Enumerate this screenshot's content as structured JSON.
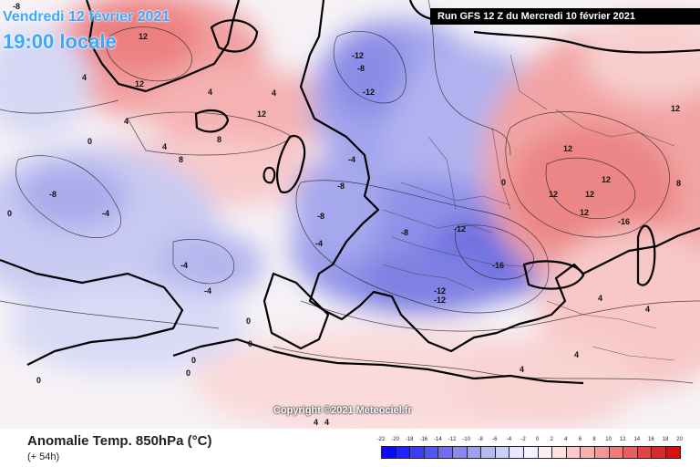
{
  "header": {
    "date": "Vendredi 12 février 2021",
    "time": "19:00 locale",
    "run": "Run GFS 12 Z du Mercredi 10 février 2021"
  },
  "footer": {
    "title": "Anomalie Temp. 850hPa (°C)",
    "subtitle": "(+ 54h)",
    "copyright": "Copyright ©2021 Meteociel.fr"
  },
  "scale": {
    "labels": [
      "-22",
      "-20",
      "-18",
      "-16",
      "-14",
      "-12",
      "-10",
      "-8",
      "-6",
      "-4",
      "-2",
      "0",
      "2",
      "4",
      "6",
      "8",
      "10",
      "12",
      "14",
      "16",
      "18",
      "20"
    ],
    "colors": [
      "#0a0aff",
      "#2222ff",
      "#3d3df2",
      "#5656ee",
      "#6f6fee",
      "#8888f0",
      "#a0a0f3",
      "#b8b8f7",
      "#cfcffb",
      "#e6e6ff",
      "#f4f4ff",
      "#fff0f0",
      "#fde0e0",
      "#fbc9c9",
      "#f7b0b0",
      "#f39696",
      "#ee7a7a",
      "#e85f5f",
      "#e24444",
      "#dc2a2a",
      "#d51010"
    ]
  },
  "map_labels": [
    {
      "t": "-8"
    },
    {
      "t": "12"
    },
    {
      "t": "12"
    },
    {
      "t": "12"
    },
    {
      "t": "4"
    },
    {
      "t": "4"
    },
    {
      "t": "8"
    },
    {
      "t": "4"
    },
    {
      "t": "8"
    },
    {
      "t": "4"
    },
    {
      "t": "4"
    },
    {
      "t": "0"
    },
    {
      "t": "0"
    },
    {
      "t": "-8"
    },
    {
      "t": "-4"
    },
    {
      "t": "-4"
    },
    {
      "t": "-4"
    },
    {
      "t": "-12"
    },
    {
      "t": "-8"
    },
    {
      "t": "-12"
    },
    {
      "t": "-4"
    },
    {
      "t": "-8"
    },
    {
      "t": "-8"
    },
    {
      "t": "-4"
    },
    {
      "t": "-8"
    },
    {
      "t": "-12"
    },
    {
      "t": "-16"
    },
    {
      "t": "-12"
    },
    {
      "t": "-12"
    },
    {
      "t": "0"
    },
    {
      "t": "12"
    },
    {
      "t": "12"
    },
    {
      "t": "12"
    },
    {
      "t": "12"
    },
    {
      "t": "12"
    },
    {
      "t": "-16"
    },
    {
      "t": "12"
    },
    {
      "t": "8"
    },
    {
      "t": "4"
    },
    {
      "t": "4"
    },
    {
      "t": "4"
    },
    {
      "t": "0"
    },
    {
      "t": "0"
    },
    {
      "t": "0"
    },
    {
      "t": "4"
    },
    {
      "t": "0"
    },
    {
      "t": "0"
    },
    {
      "t": "4"
    },
    {
      "t": "4"
    }
  ]
}
